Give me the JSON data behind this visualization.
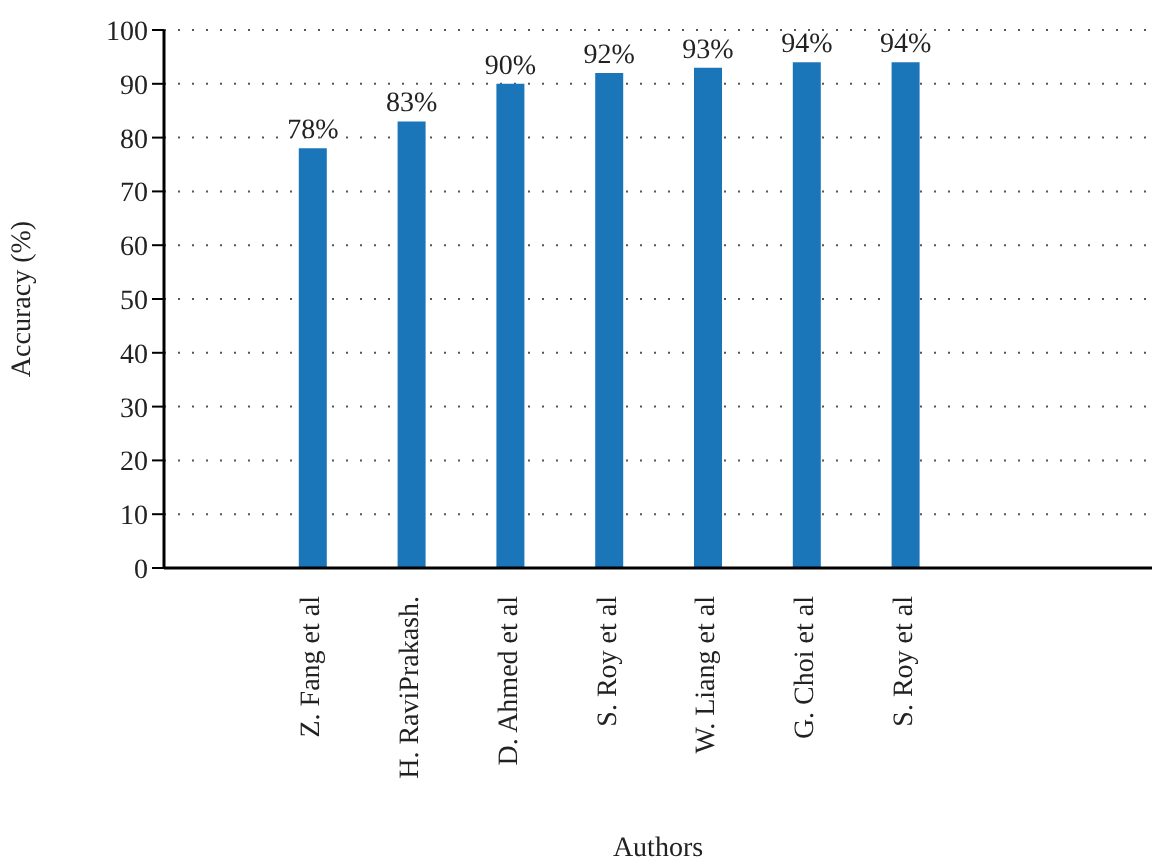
{
  "chart_data": {
    "type": "bar",
    "xlabel": "Authors",
    "ylabel": "Accuracy (%)",
    "categories": [
      null,
      "Z. Fang et al",
      "H. RaviPrakash.",
      "D. Ahmed et al",
      "S. Roy et al",
      "W. Liang et al",
      "G. Choi et al",
      "S. Roy et al",
      null,
      null
    ],
    "values": [
      null,
      78,
      83,
      90,
      92,
      93,
      94,
      94,
      null,
      null
    ],
    "value_labels": [
      null,
      "78%",
      "83%",
      "90%",
      "92%",
      "93%",
      "94%",
      "94%",
      null,
      null
    ],
    "color": "#1b75b9",
    "ylim": [
      0,
      100
    ],
    "yticks": [
      0,
      10,
      20,
      30,
      40,
      50,
      60,
      70,
      80,
      90,
      100
    ],
    "grid": "y"
  }
}
